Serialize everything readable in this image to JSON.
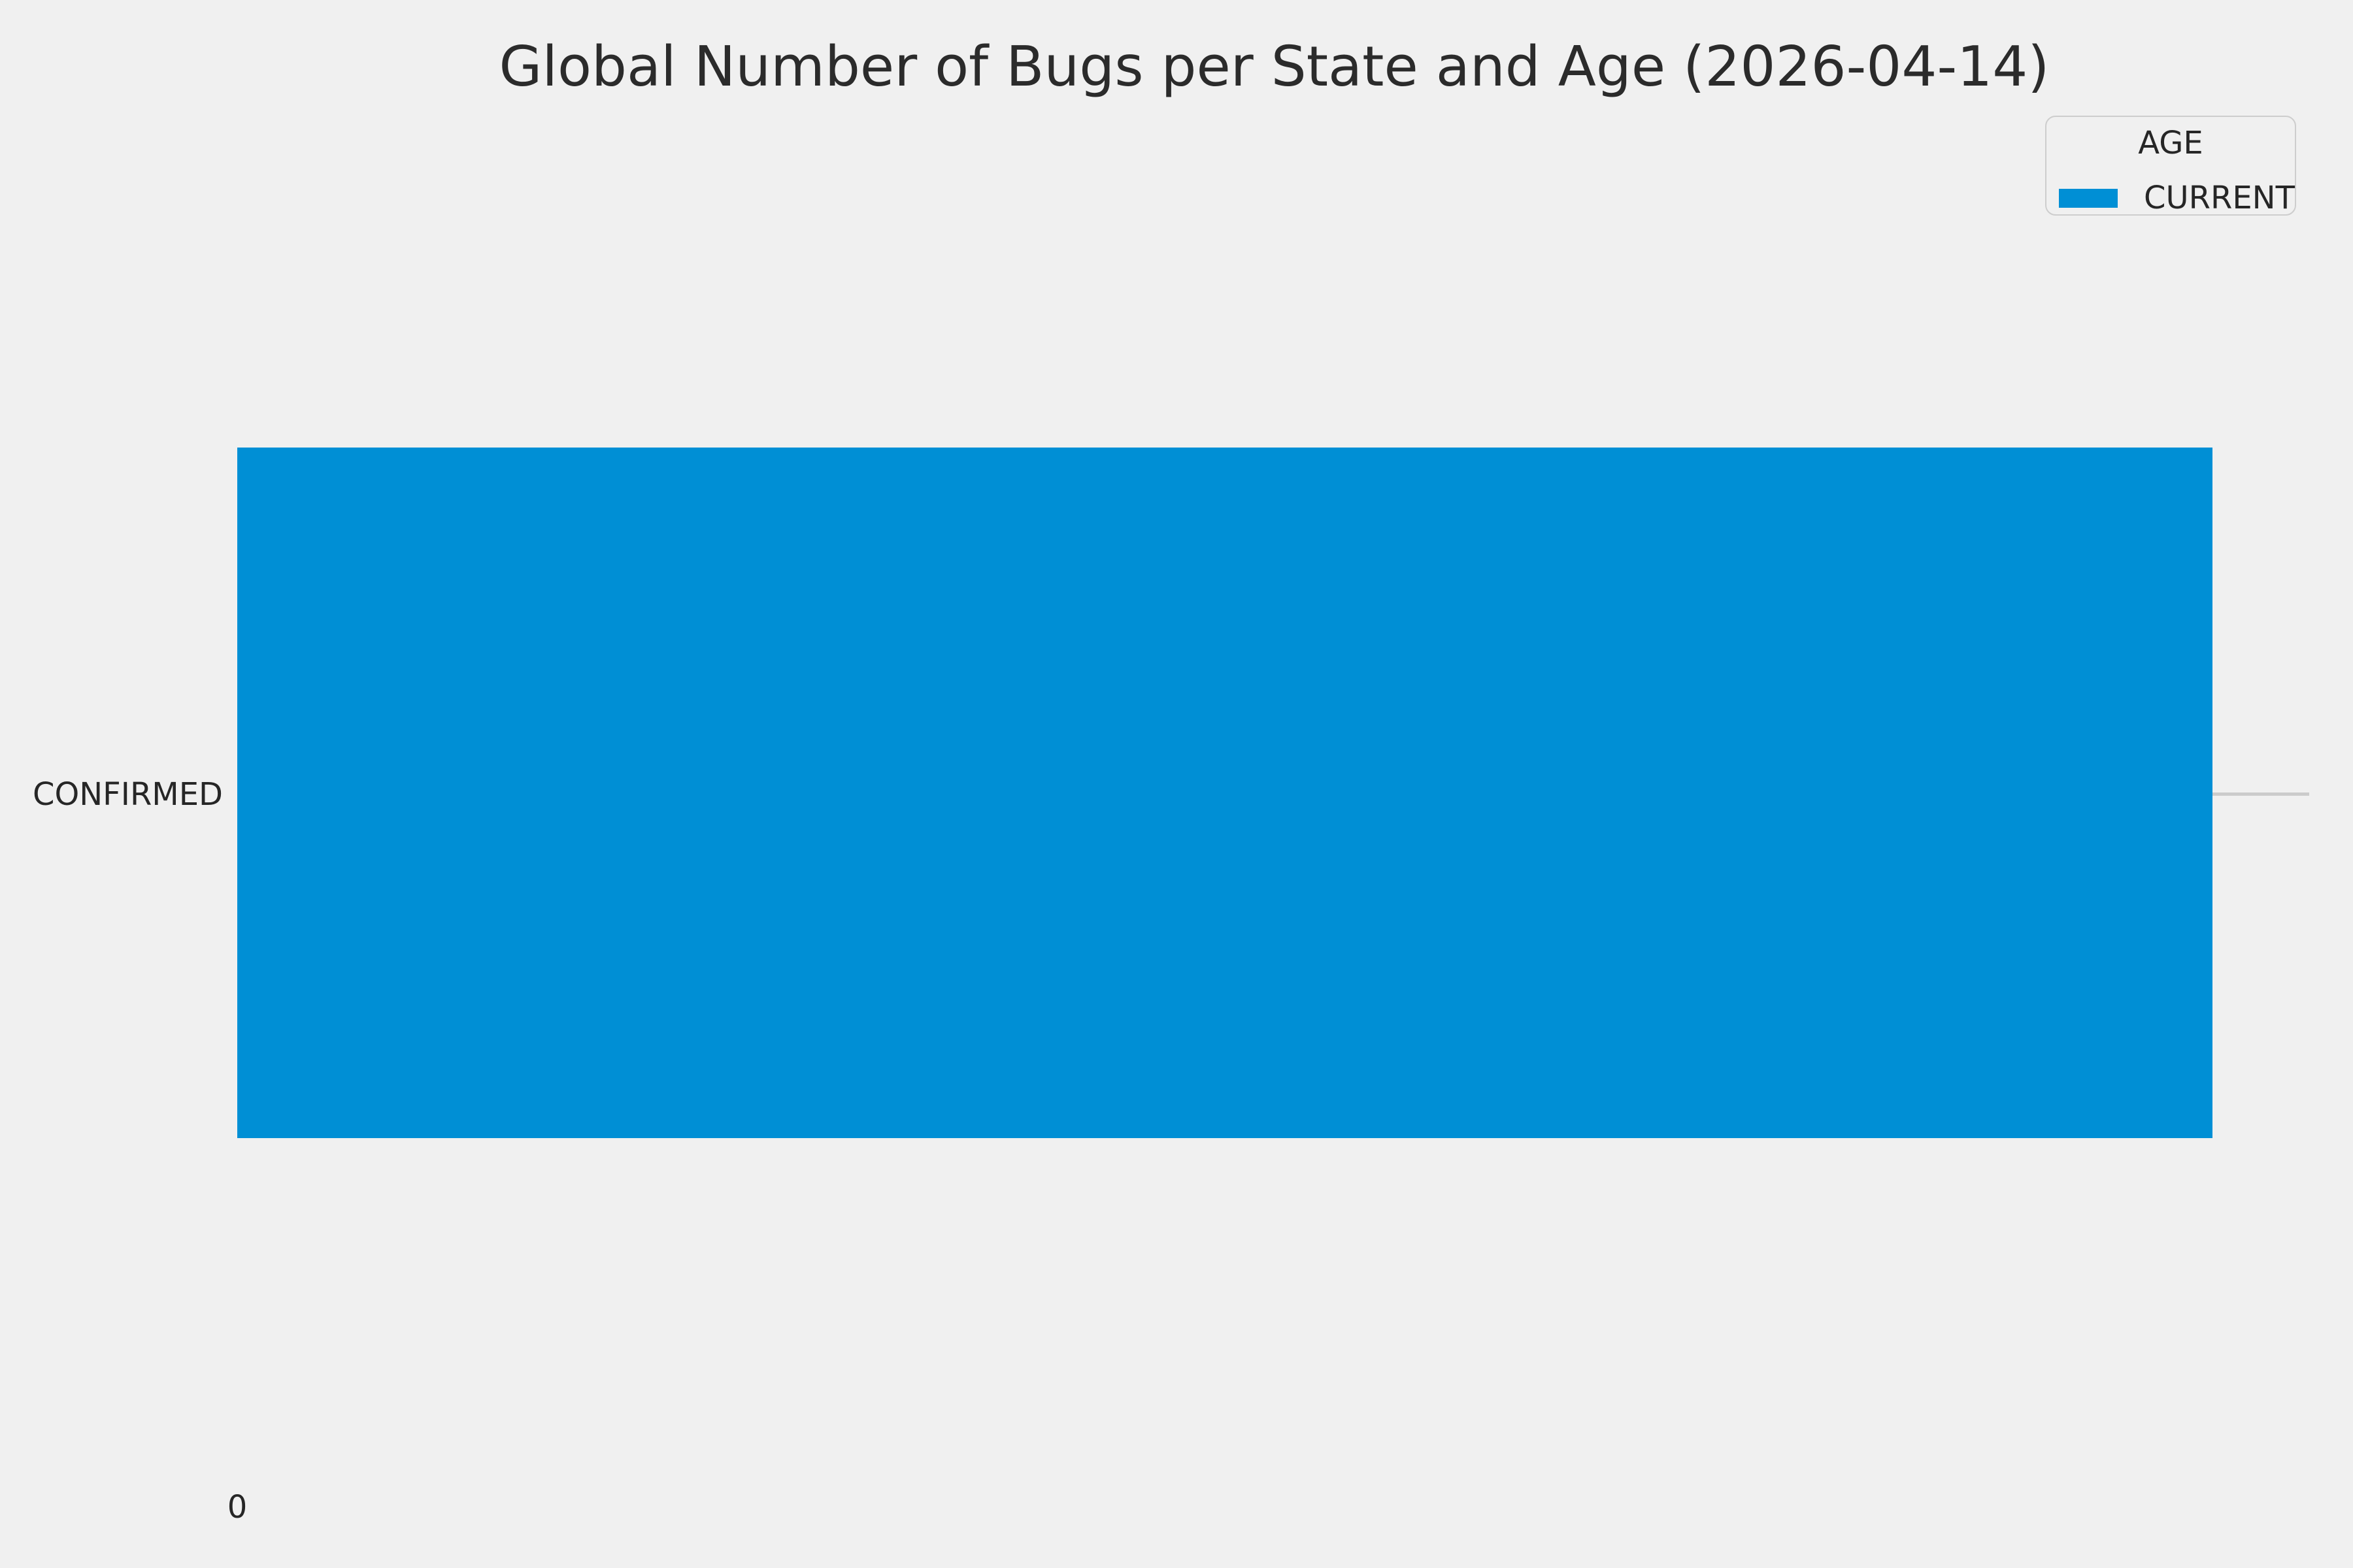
{
  "chart_data": {
    "type": "bar",
    "orientation": "horizontal",
    "title": "Global Number of Bugs per State and Age (2026-04-14)",
    "categories": [
      "CONFIRMED"
    ],
    "series": [
      {
        "name": "CURRENT",
        "values": [
          null
        ]
      }
    ],
    "legend": {
      "title": "AGE",
      "position": "upper-right-inside-axes",
      "entries": [
        "CURRENT"
      ]
    },
    "x_ticks": [
      "0"
    ],
    "y_ticks": [
      "CONFIRMED"
    ],
    "xlabel": "",
    "ylabel": "",
    "grid": "single horizontal gridline at category center, visible only to the right of the bar end",
    "note": "Bar value is not labeled on screen; the only x-axis tick shown is 0. The bar spans ~95% of the panel width.",
    "bar_fraction_of_panel_width": 0.95,
    "colors": {
      "bar": "#008fd5",
      "background": "#f0f0f0",
      "gridline": "#cbcbcb",
      "legend_border": "#cdcdcd",
      "text": "#262626"
    }
  }
}
